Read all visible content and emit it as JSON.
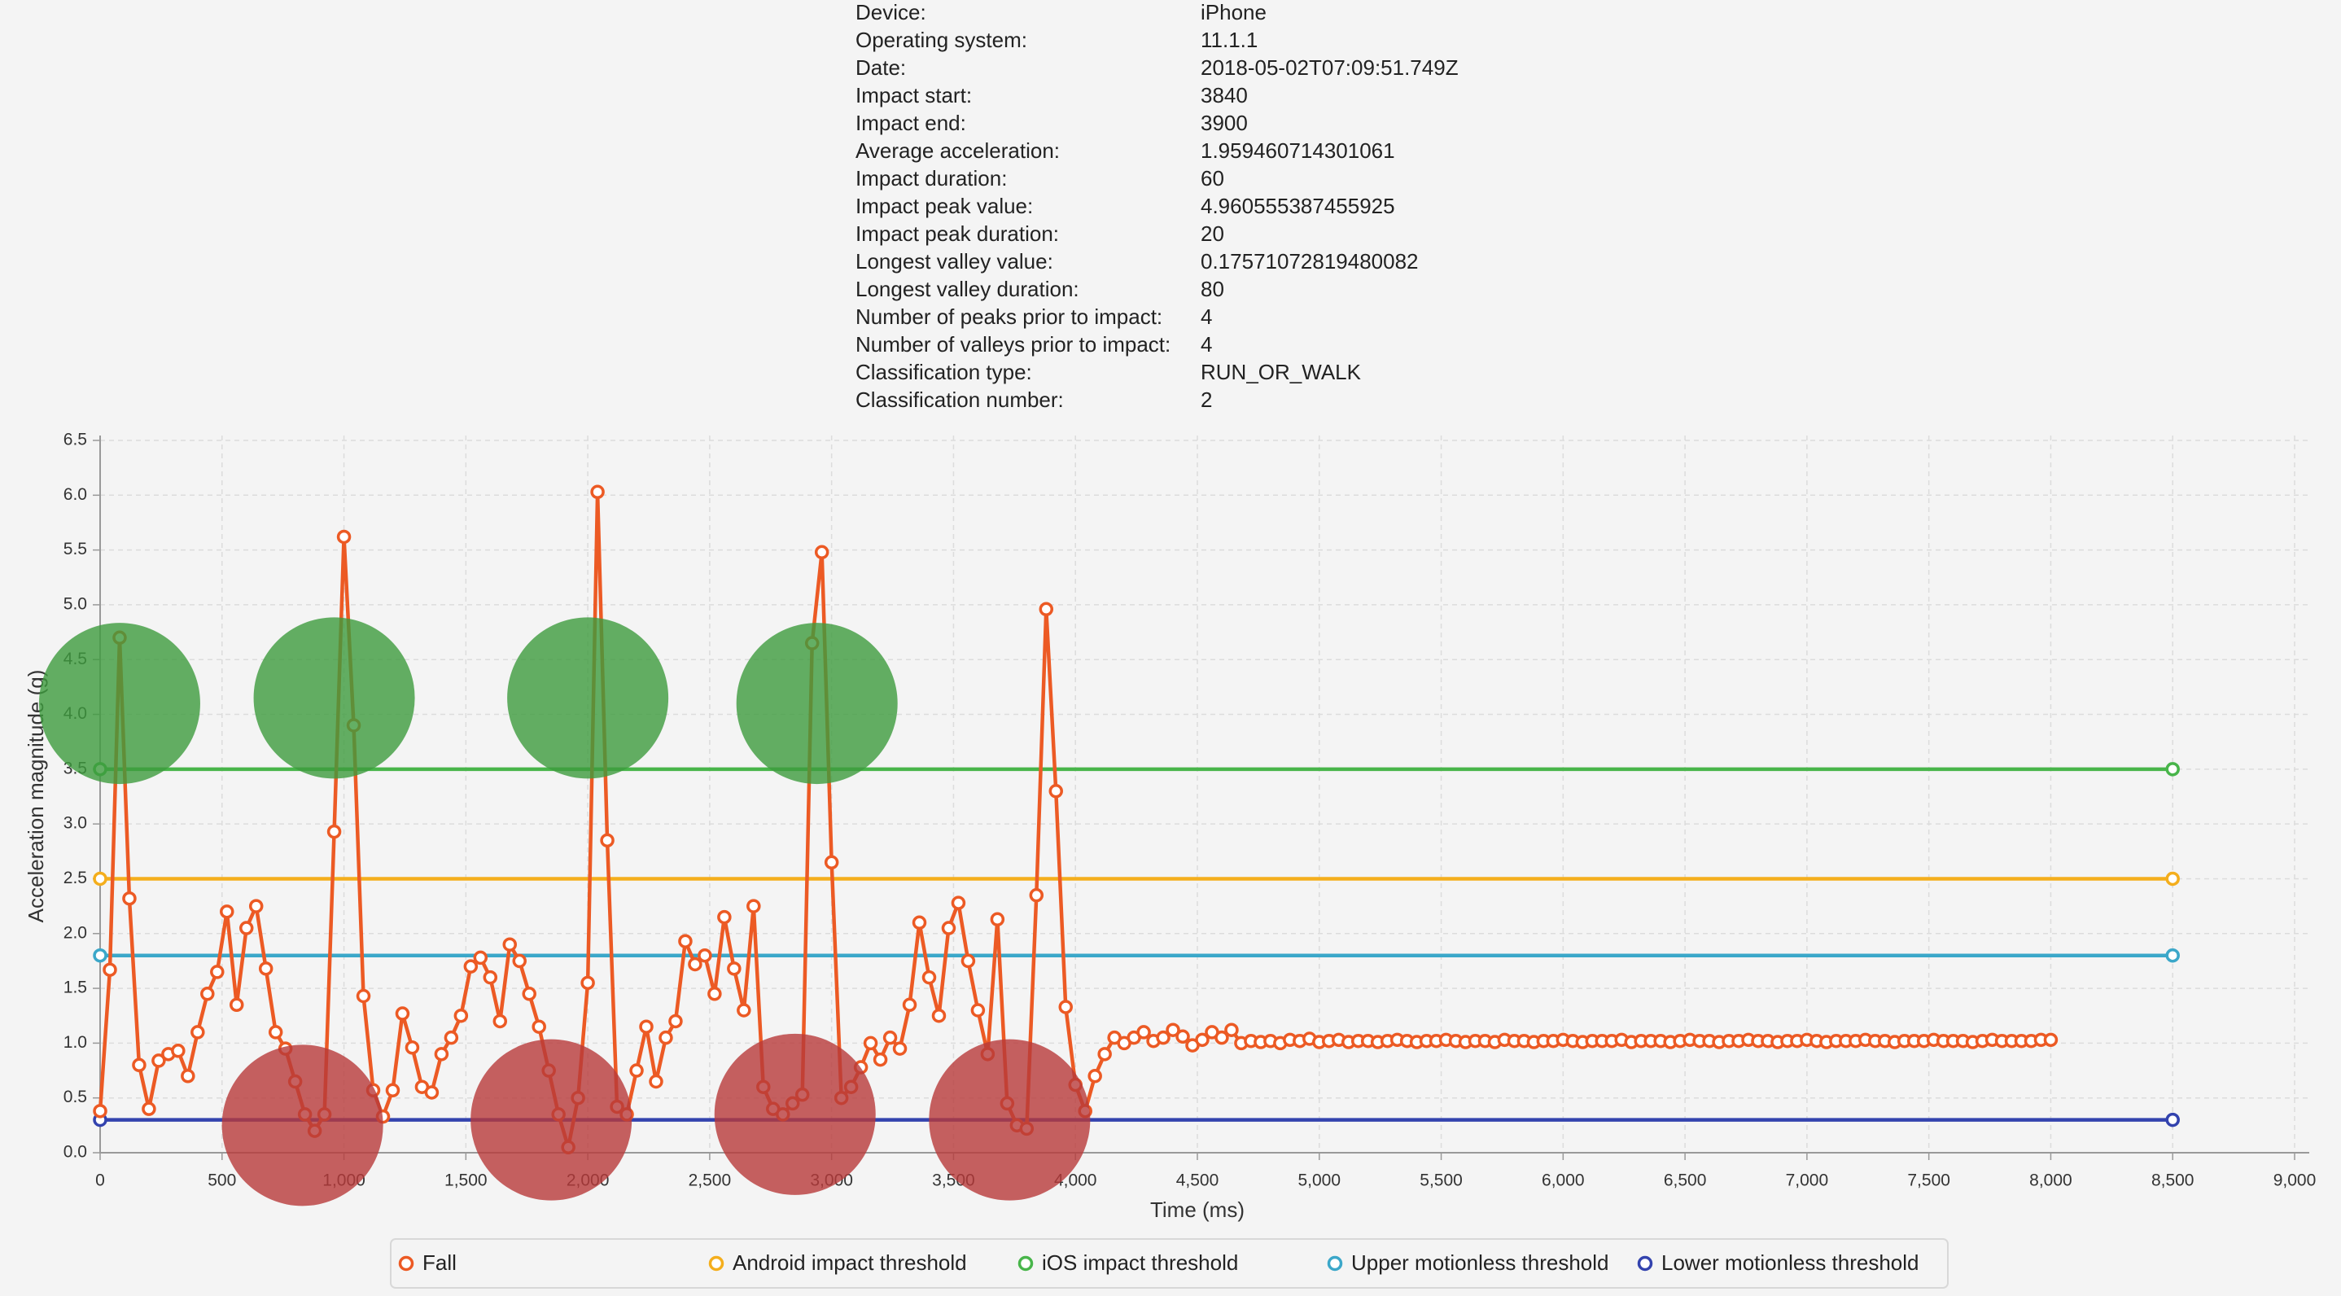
{
  "info": {
    "rows": [
      [
        "Device:",
        "iPhone"
      ],
      [
        "Operating system:",
        "11.1.1"
      ],
      [
        "Date:",
        "2018-05-02T07:09:51.749Z"
      ],
      [
        "Impact start:",
        "3840"
      ],
      [
        "Impact end:",
        "3900"
      ],
      [
        "Average acceleration:",
        "1.959460714301061"
      ],
      [
        "Impact duration:",
        "60"
      ],
      [
        "Impact peak value:",
        "4.960555387455925"
      ],
      [
        "Impact peak duration:",
        "20"
      ],
      [
        "Longest valley value:",
        "0.17571072819480082"
      ],
      [
        "Longest valley duration:",
        "80"
      ],
      [
        "Number of peaks prior to impact:",
        "4"
      ],
      [
        "Number of valleys prior to impact:",
        "4"
      ],
      [
        "Classification type:",
        "RUN_OR_WALK"
      ],
      [
        "Classification number:",
        "2"
      ]
    ]
  },
  "chart_data": {
    "type": "line",
    "xlabel": "Time (ms)",
    "ylabel": "Acceleration magnitude (g)",
    "xlim": [
      0,
      9000
    ],
    "ylim": [
      0,
      6.5
    ],
    "xticks": [
      0,
      500,
      {
        "value": 1000,
        "label": "1,000"
      },
      {
        "value": 1500,
        "label": "1,500"
      },
      {
        "value": 2000,
        "label": "2,000"
      },
      {
        "value": 2500,
        "label": "2,500"
      },
      {
        "value": 3000,
        "label": "3,000"
      },
      {
        "value": 3500,
        "label": "3,500"
      },
      {
        "value": 4000,
        "label": "4,000"
      },
      {
        "value": 4500,
        "label": "4,500"
      },
      {
        "value": 5000,
        "label": "5,000"
      },
      {
        "value": 5500,
        "label": "5,500"
      },
      {
        "value": 6000,
        "label": "6,000"
      },
      {
        "value": 6500,
        "label": "6,500"
      },
      {
        "value": 7000,
        "label": "7,000"
      },
      {
        "value": 7500,
        "label": "7,500"
      },
      {
        "value": 8000,
        "label": "8,000"
      },
      {
        "value": 8500,
        "label": "8,500"
      },
      {
        "value": 9000,
        "label": "9,000"
      }
    ],
    "yticks": [
      {
        "value": 0,
        "label": "0.0"
      },
      0.5,
      {
        "value": 1,
        "label": "1.0"
      },
      1.5,
      {
        "value": 2,
        "label": "2.0"
      },
      2.5,
      {
        "value": 3,
        "label": "3.0"
      },
      3.5,
      {
        "value": 4,
        "label": "4.0"
      },
      4.5,
      {
        "value": 5,
        "label": "5.0"
      },
      5.5,
      {
        "value": 6,
        "label": "6.0"
      },
      6.5
    ],
    "grid": true,
    "legend": "bottom",
    "series": [
      {
        "name": "Fall",
        "color": "#ec5a24",
        "x": [
          0,
          40,
          80,
          120,
          160,
          200,
          240,
          280,
          320,
          360,
          400,
          440,
          480,
          520,
          560,
          600,
          640,
          680,
          720,
          760,
          800,
          840,
          880,
          920,
          960,
          1000,
          1040,
          1080,
          1120,
          1160,
          1200,
          1240,
          1280,
          1320,
          1360,
          1400,
          1440,
          1480,
          1520,
          1560,
          1600,
          1640,
          1680,
          1720,
          1760,
          1800,
          1840,
          1880,
          1920,
          1960,
          2000,
          2040,
          2080,
          2120,
          2160,
          2200,
          2240,
          2280,
          2320,
          2360,
          2400,
          2440,
          2480,
          2520,
          2560,
          2600,
          2640,
          2680,
          2720,
          2760,
          2800,
          2840,
          2880,
          2920,
          2960,
          3000,
          3040,
          3080,
          3120,
          3160,
          3200,
          3240,
          3280,
          3320,
          3360,
          3400,
          3440,
          3480,
          3520,
          3560,
          3600,
          3640,
          3680,
          3720,
          3760,
          3800,
          3840,
          3880,
          3920,
          3960,
          4000,
          4040,
          4080,
          4120,
          4160,
          4200,
          4240,
          4280,
          4320,
          4360,
          4400,
          4440,
          4480,
          4520,
          4560,
          4600,
          4640,
          4680,
          4720,
          4760,
          4800,
          4840,
          4880,
          4920,
          4960,
          5000,
          5040,
          5080,
          5120,
          5160,
          5200,
          5240,
          5280,
          5320,
          5360,
          5400,
          5440,
          5480,
          5520,
          5560,
          5600,
          5640,
          5680,
          5720,
          5760,
          5800,
          5840,
          5880,
          5920,
          5960,
          6000,
          6040,
          6080,
          6120,
          6160,
          6200,
          6240,
          6280,
          6320,
          6360,
          6400,
          6440,
          6480,
          6520,
          6560,
          6600,
          6640,
          6680,
          6720,
          6760,
          6800,
          6840,
          6880,
          6920,
          6960,
          7000,
          7040,
          7080,
          7120,
          7160,
          7200,
          7240,
          7280,
          7320,
          7360,
          7400,
          7440,
          7480,
          7520,
          7560,
          7600,
          7640,
          7680,
          7720,
          7760,
          7800,
          7840,
          7880,
          7920,
          7960,
          8000
        ],
        "values": [
          0.38,
          1.67,
          4.7,
          2.32,
          0.8,
          0.4,
          0.84,
          0.9,
          0.93,
          0.7,
          1.1,
          1.45,
          1.65,
          2.2,
          1.35,
          2.05,
          2.25,
          1.68,
          1.1,
          0.95,
          0.65,
          0.35,
          0.2,
          0.35,
          2.93,
          5.62,
          3.9,
          1.43,
          0.57,
          0.33,
          0.57,
          1.27,
          0.96,
          0.6,
          0.55,
          0.9,
          1.05,
          1.25,
          1.7,
          1.78,
          1.6,
          1.2,
          1.9,
          1.75,
          1.45,
          1.15,
          0.75,
          0.35,
          0.05,
          0.5,
          1.55,
          6.03,
          2.85,
          0.42,
          0.35,
          0.75,
          1.15,
          0.65,
          1.05,
          1.2,
          1.93,
          1.72,
          1.8,
          1.45,
          2.15,
          1.68,
          1.3,
          2.25,
          0.6,
          0.4,
          0.35,
          0.45,
          0.53,
          4.65,
          5.48,
          2.65,
          0.5,
          0.6,
          0.78,
          1.0,
          0.85,
          1.05,
          0.95,
          1.35,
          2.1,
          1.6,
          1.25,
          2.05,
          2.28,
          1.75,
          1.3,
          0.9,
          2.13,
          0.45,
          0.25,
          0.22,
          2.35,
          4.96,
          3.3,
          1.33,
          0.62,
          0.38,
          0.7,
          0.9,
          1.05,
          1.0,
          1.05,
          1.1,
          1.02,
          1.05,
          1.12,
          1.06,
          0.98,
          1.03,
          1.1,
          1.05,
          1.12,
          1.0,
          1.02,
          1.01,
          1.02,
          1.0,
          1.03,
          1.02,
          1.04,
          1.01,
          1.02,
          1.03,
          1.01,
          1.02,
          1.02,
          1.01,
          1.02,
          1.03,
          1.02,
          1.01,
          1.02,
          1.02,
          1.03,
          1.02,
          1.01,
          1.02,
          1.02,
          1.01,
          1.03,
          1.02,
          1.02,
          1.01,
          1.02,
          1.02,
          1.03,
          1.02,
          1.01,
          1.02,
          1.02,
          1.02,
          1.03,
          1.01,
          1.02,
          1.02,
          1.02,
          1.01,
          1.02,
          1.03,
          1.02,
          1.02,
          1.01,
          1.02,
          1.02,
          1.03,
          1.02,
          1.02,
          1.01,
          1.02,
          1.02,
          1.03,
          1.02,
          1.01,
          1.02,
          1.02,
          1.02,
          1.03,
          1.02,
          1.02,
          1.01,
          1.02,
          1.02,
          1.02,
          1.03,
          1.02,
          1.02,
          1.02,
          1.01,
          1.02,
          1.03,
          1.02,
          1.02,
          1.02,
          1.02,
          1.03,
          1.03
        ]
      },
      {
        "name": "Android impact threshold",
        "color": "#f4ae1c",
        "x": [
          0,
          8500
        ],
        "values": [
          2.5,
          2.5
        ]
      },
      {
        "name": "iOS impact threshold",
        "color": "#48b54a",
        "x": [
          0,
          8500
        ],
        "values": [
          3.5,
          3.5
        ]
      },
      {
        "name": "Upper motionless threshold",
        "color": "#3ba7c9",
        "x": [
          0,
          8500
        ],
        "values": [
          1.8,
          1.8
        ]
      },
      {
        "name": "Lower motionless threshold",
        "color": "#3343ae",
        "x": [
          0,
          8500
        ],
        "values": [
          0.3,
          0.3
        ]
      }
    ],
    "peaks": {
      "color": "#3d9b3d",
      "x": [
        80,
        960,
        2000,
        2940
      ],
      "values": [
        4.1,
        4.15,
        4.15,
        4.1
      ]
    },
    "valleys": {
      "color": "#b83a3a",
      "x": [
        830,
        1850,
        2850,
        3730
      ],
      "values": [
        0.25,
        0.3,
        0.35,
        0.3
      ]
    }
  }
}
